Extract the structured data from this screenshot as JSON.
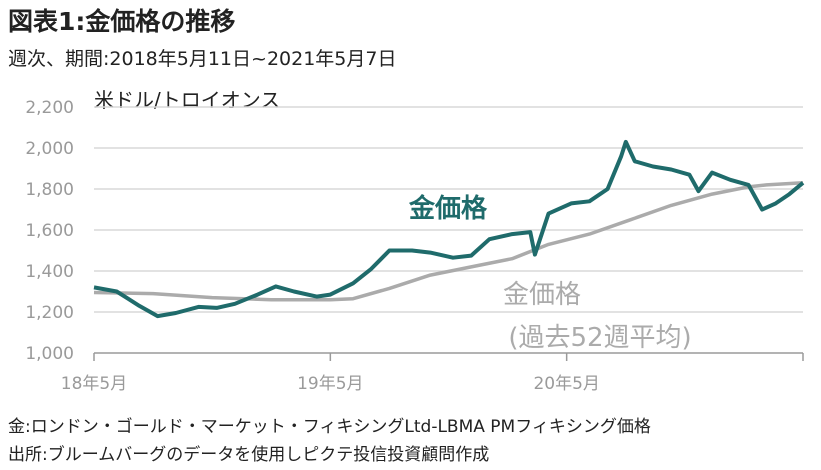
{
  "header": {
    "title": "図表1:金価格の推移",
    "subtitle": "週次、期間:2018年5月11日~2021年5月7日"
  },
  "footer": {
    "note1": "金:ロンドン・ゴールド・マーケット・フィキシングLtd-LBMA PMフィキシング価格",
    "note2": "出所:ブルームバーグのデータを使用しピクテ投信投資顧問作成"
  },
  "chart_data": {
    "type": "line",
    "ylabel": "米ドル/トロイオンス",
    "ylim": [
      1000,
      2200
    ],
    "y_ticks": [
      "1,000",
      "1,200",
      "1,400",
      "1,600",
      "1,800",
      "2,000",
      "2,200"
    ],
    "x_range": [
      "2018-05-11",
      "2021-05-07"
    ],
    "x_ticks": [
      "18年5月",
      "19年5月",
      "20年5月"
    ],
    "grid": "horizontal",
    "colors": {
      "gold": "#1f6b6b",
      "ma": "#ababab",
      "axis": "#9a9a9a"
    },
    "series": [
      {
        "name": "金価格",
        "points": [
          [
            "2018-05-11",
            1320
          ],
          [
            "2018-06-15",
            1300
          ],
          [
            "2018-07-20",
            1230
          ],
          [
            "2018-08-17",
            1180
          ],
          [
            "2018-09-14",
            1195
          ],
          [
            "2018-10-19",
            1225
          ],
          [
            "2018-11-16",
            1220
          ],
          [
            "2018-12-14",
            1240
          ],
          [
            "2019-01-18",
            1285
          ],
          [
            "2019-02-15",
            1325
          ],
          [
            "2019-03-15",
            1300
          ],
          [
            "2019-04-19",
            1275
          ],
          [
            "2019-05-10",
            1285
          ],
          [
            "2019-06-14",
            1340
          ],
          [
            "2019-07-12",
            1410
          ],
          [
            "2019-08-09",
            1500
          ],
          [
            "2019-09-13",
            1500
          ],
          [
            "2019-10-11",
            1490
          ],
          [
            "2019-11-15",
            1465
          ],
          [
            "2019-12-13",
            1475
          ],
          [
            "2020-01-10",
            1555
          ],
          [
            "2020-02-14",
            1580
          ],
          [
            "2020-03-13",
            1590
          ],
          [
            "2020-03-20",
            1480
          ],
          [
            "2020-04-10",
            1680
          ],
          [
            "2020-05-15",
            1730
          ],
          [
            "2020-06-12",
            1740
          ],
          [
            "2020-07-10",
            1800
          ],
          [
            "2020-07-31",
            1960
          ],
          [
            "2020-08-07",
            2030
          ],
          [
            "2020-08-21",
            1935
          ],
          [
            "2020-09-18",
            1910
          ],
          [
            "2020-10-16",
            1895
          ],
          [
            "2020-11-13",
            1870
          ],
          [
            "2020-11-27",
            1790
          ],
          [
            "2020-12-18",
            1880
          ],
          [
            "2021-01-15",
            1845
          ],
          [
            "2021-02-12",
            1820
          ],
          [
            "2021-03-05",
            1700
          ],
          [
            "2021-03-26",
            1730
          ],
          [
            "2021-04-16",
            1775
          ],
          [
            "2021-05-07",
            1830
          ]
        ]
      },
      {
        "name": "金価格",
        "name_sub": "(過去52週平均)",
        "points": [
          [
            "2018-05-11",
            1295
          ],
          [
            "2018-08-10",
            1290
          ],
          [
            "2018-11-09",
            1270
          ],
          [
            "2019-02-08",
            1260
          ],
          [
            "2019-05-10",
            1260
          ],
          [
            "2019-06-14",
            1265
          ],
          [
            "2019-08-09",
            1315
          ],
          [
            "2019-10-11",
            1380
          ],
          [
            "2019-12-13",
            1420
          ],
          [
            "2020-02-14",
            1460
          ],
          [
            "2020-04-10",
            1530
          ],
          [
            "2020-06-12",
            1580
          ],
          [
            "2020-08-14",
            1650
          ],
          [
            "2020-10-16",
            1720
          ],
          [
            "2020-12-18",
            1775
          ],
          [
            "2021-02-12",
            1810
          ],
          [
            "2021-03-12",
            1820
          ],
          [
            "2021-05-07",
            1830
          ]
        ]
      }
    ]
  }
}
